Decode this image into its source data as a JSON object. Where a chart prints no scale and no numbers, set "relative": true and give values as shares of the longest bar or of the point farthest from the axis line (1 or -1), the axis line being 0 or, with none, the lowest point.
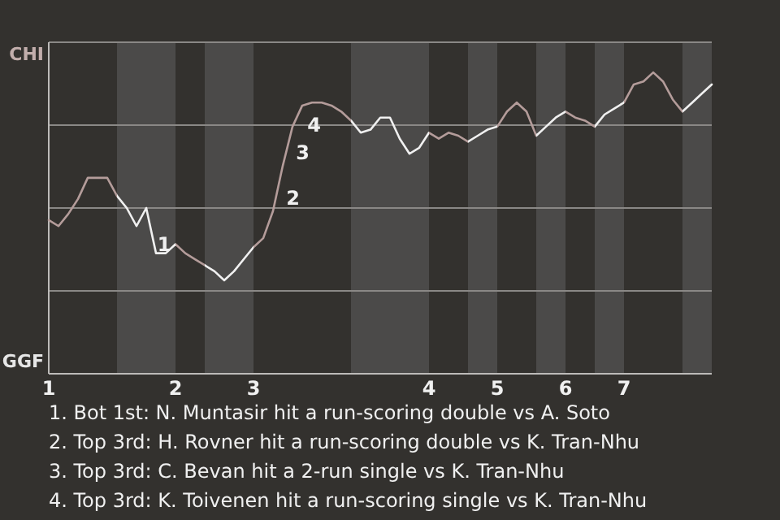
{
  "chart_data": {
    "type": "line",
    "relative": true,
    "grid": "y",
    "categories": [
      "1",
      null,
      null,
      null,
      null,
      null,
      null,
      null,
      null,
      null,
      null,
      null,
      null,
      "2",
      null,
      null,
      null,
      null,
      null,
      null,
      null,
      "3",
      null,
      null,
      null,
      null,
      null,
      null,
      null,
      null,
      null,
      null,
      null,
      null,
      null,
      null,
      null,
      null,
      null,
      "4",
      null,
      null,
      null,
      null,
      null,
      null,
      "5",
      null,
      null,
      null,
      null,
      null,
      null,
      "6",
      null,
      null,
      null,
      null,
      null,
      "7",
      null,
      null,
      null,
      null,
      null,
      null,
      null,
      null,
      null
    ],
    "series": [
      {
        "values": [
          0.51,
          0.49,
          0.53,
          0.58,
          0.65,
          0.65,
          0.65,
          0.59,
          0.55,
          0.49,
          0.55,
          0.4,
          0.4,
          0.43,
          0.4,
          0.38,
          0.36,
          0.34,
          0.31,
          0.34,
          0.38,
          0.42,
          0.45,
          0.54,
          0.69,
          0.82,
          0.89,
          0.9,
          0.9,
          0.89,
          0.87,
          0.84,
          0.8,
          0.81,
          0.85,
          0.85,
          0.78,
          0.73,
          0.75,
          0.8,
          0.78,
          0.8,
          0.79,
          0.77,
          0.79,
          0.81,
          0.82,
          0.87,
          0.9,
          0.87,
          0.79,
          0.82,
          0.85,
          0.87,
          0.85,
          0.84,
          0.82,
          0.86,
          0.88,
          0.9,
          0.96,
          0.97,
          1,
          0.97,
          0.91,
          0.87,
          0.9,
          0.93,
          0.96
        ],
        "colors": [
          "#b49c9a",
          "#b49c9a",
          "#b49c9a",
          "#b49c9a",
          "#b49c9a",
          "#b49c9a",
          "#b49c9a",
          "#b49c9a",
          "#f0f0f0",
          "#f0f0f0",
          "#f0f0f0",
          "#f0f0f0",
          "#f0f0f0",
          "#f0f0f0",
          "#b49c9a",
          "#b49c9a",
          "#b49c9a",
          "#f0f0f0",
          "#f0f0f0",
          "#f0f0f0",
          "#f0f0f0",
          "#f0f0f0",
          "#b49c9a",
          "#b49c9a",
          "#b49c9a",
          "#b49c9a",
          "#b49c9a",
          "#b49c9a",
          "#b49c9a",
          "#b49c9a",
          "#b49c9a",
          "#b49c9a",
          "#f0f0f0",
          "#f0f0f0",
          "#f0f0f0",
          "#f0f0f0",
          "#f0f0f0",
          "#f0f0f0",
          "#f0f0f0",
          "#f0f0f0",
          "#b49c9a",
          "#b49c9a",
          "#b49c9a",
          "#b49c9a",
          "#f0f0f0",
          "#f0f0f0",
          "#f0f0f0",
          "#b49c9a",
          "#b49c9a",
          "#b49c9a",
          "#b49c9a",
          "#f0f0f0",
          "#f0f0f0",
          "#f0f0f0",
          "#b49c9a",
          "#b49c9a",
          "#b49c9a",
          "#f0f0f0",
          "#f0f0f0",
          "#f0f0f0",
          "#b49c9a",
          "#b49c9a",
          "#b49c9a",
          "#b49c9a",
          "#b49c9a",
          "#b49c9a",
          "#f0f0f0",
          "#f0f0f0",
          "#f0f0f0"
        ]
      }
    ],
    "annotations": [
      "CHI",
      "GGF",
      "1",
      "2",
      "3",
      "4",
      "1. Bot 1st: N. Muntasir hit a run-scoring double vs A. Soto",
      "2. Top 3rd: H. Rovner hit a run-scoring double vs K. Tran-Nhu",
      "3. Top 3rd: C. Bevan hit a 2-run single vs K. Tran-Nhu",
      "4. Top 3rd: K. Toivenen hit a run-scoring single vs K. Tran-Nhu"
    ]
  }
}
